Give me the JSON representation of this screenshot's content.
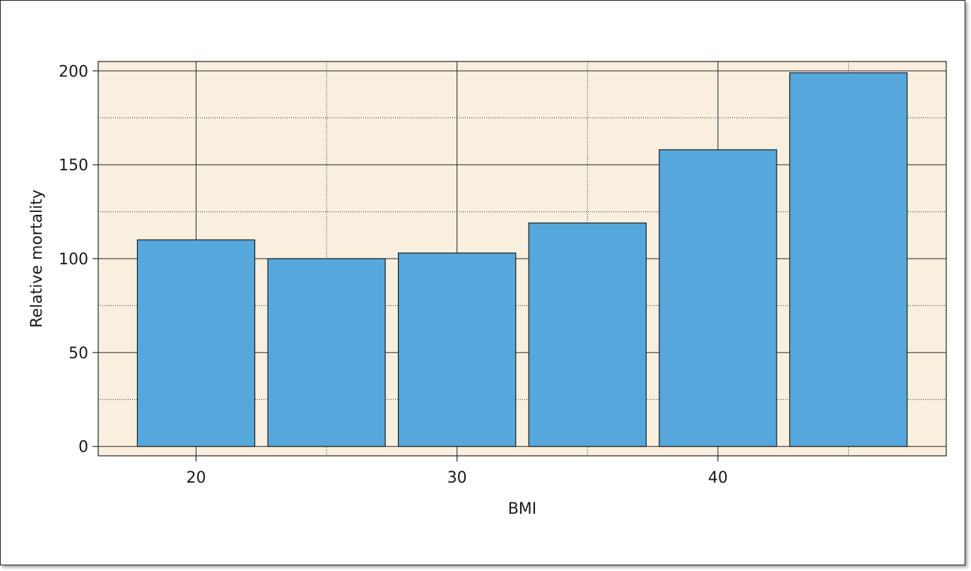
{
  "chart_data": {
    "type": "bar",
    "x": [
      20,
      25,
      30,
      35,
      40,
      45
    ],
    "values": [
      110,
      100,
      103,
      119,
      158,
      199
    ],
    "bar_width": 4.5,
    "xlabel": "BMI",
    "ylabel": "Relative mortality",
    "xlim": [
      16.25,
      48.75
    ],
    "ylim": [
      -5,
      205
    ],
    "xticks": [
      20,
      30,
      40
    ],
    "xticks_minor": [
      25,
      35,
      45
    ],
    "yticks": [
      0,
      50,
      100,
      150,
      200
    ],
    "yticks_minor": [
      25,
      75,
      125,
      175
    ],
    "grid": true,
    "colors": {
      "bar_fill": "#55a7dc",
      "bar_edge": "#1a1a1a",
      "plot_bg": "#f8efdf"
    }
  }
}
